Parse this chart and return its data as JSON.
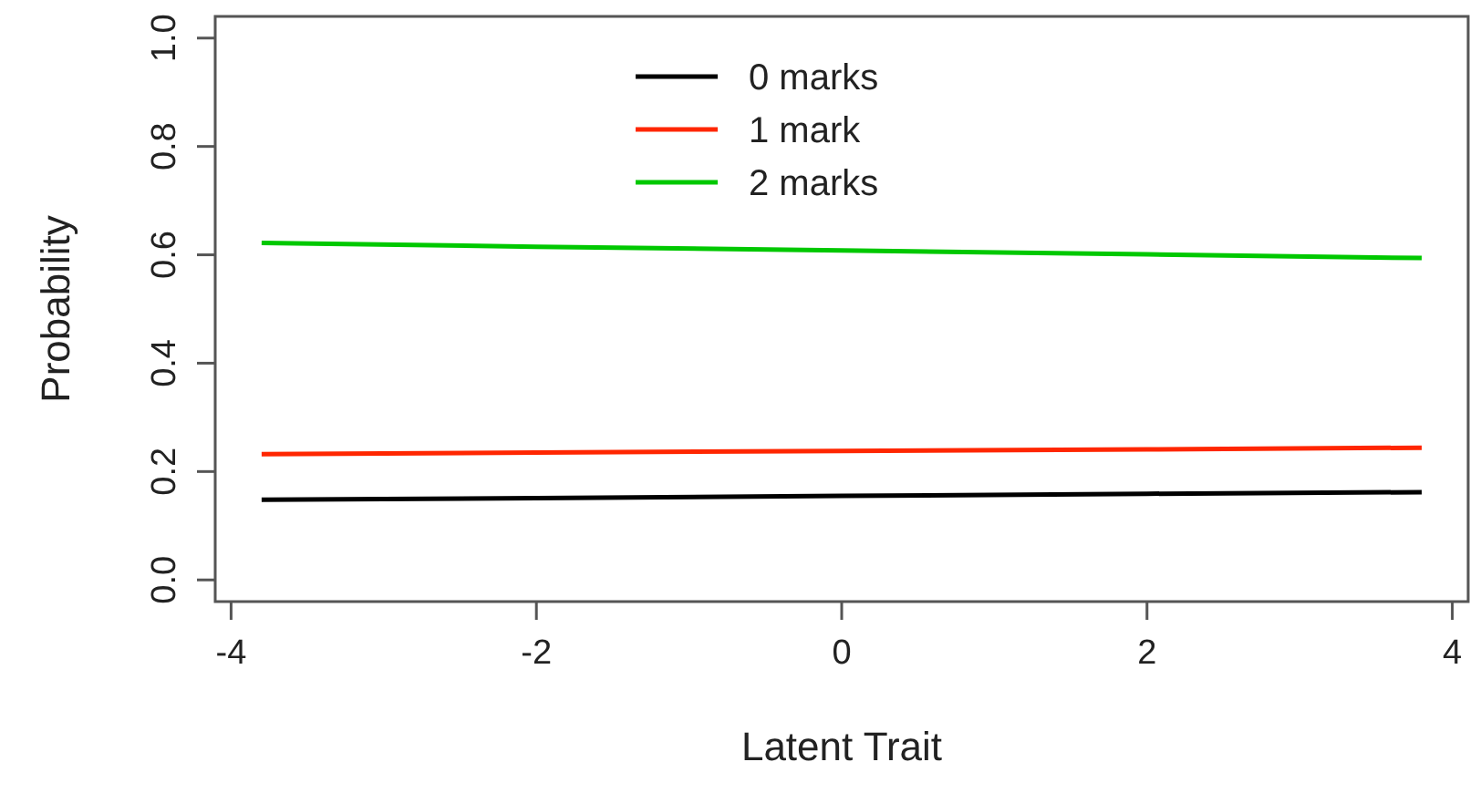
{
  "chart_data": {
    "type": "line",
    "xlabel": "Latent Trait",
    "ylabel": "Probability",
    "x": [
      -3.8,
      -2,
      0,
      2,
      3.8
    ],
    "series": [
      {
        "name": "0 marks",
        "color": "#000000",
        "values": [
          0.148,
          0.151,
          0.155,
          0.159,
          0.162
        ]
      },
      {
        "name": "1 mark",
        "color": "#ff2600",
        "values": [
          0.232,
          0.235,
          0.238,
          0.241,
          0.244
        ]
      },
      {
        "name": "2 marks",
        "color": "#00c800",
        "values": [
          0.622,
          0.615,
          0.608,
          0.601,
          0.594
        ]
      }
    ],
    "xlim": [
      -4.104,
      4.104
    ],
    "ylim": [
      -0.04,
      1.04
    ],
    "xticks": [
      -4,
      -2,
      0,
      2,
      4
    ],
    "yticks": [
      {
        "value": 0,
        "label": "0.0"
      },
      {
        "value": 0.2,
        "label": "0.2"
      },
      {
        "value": 0.4,
        "label": "0.4"
      },
      {
        "value": 0.6,
        "label": "0.6"
      },
      {
        "value": 0.8,
        "label": "0.8"
      },
      {
        "value": 1,
        "label": "1.0"
      }
    ],
    "legend": "top",
    "grid": false,
    "marker": "none",
    "line_style": "solid"
  }
}
